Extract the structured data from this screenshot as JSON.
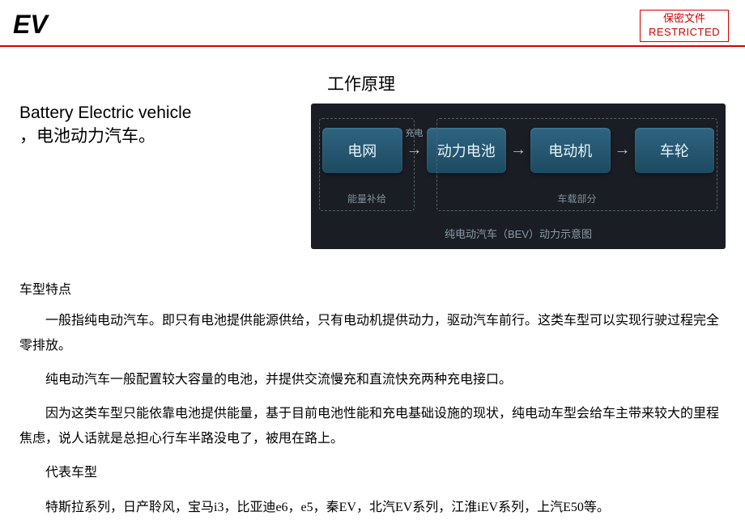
{
  "header": {
    "title": "EV",
    "restricted_cn": "保密文件",
    "restricted_en": "RESTRICTED",
    "restricted_color": "#d40000"
  },
  "intro": {
    "en": "Battery Electric vehicle",
    "cn": "，电池动力汽车。"
  },
  "diagram": {
    "title": "工作原理",
    "bg_color": "#1a1e24",
    "node_gradient_top": "#2e6480",
    "node_gradient_bottom": "#1d4a62",
    "caption": "纯电动汽车（BEV）动力示意图",
    "nodes": [
      "电网",
      "动力电池",
      "电动机",
      "车轮"
    ],
    "arrow_label_1": "充电",
    "group_left_label": "能量补给",
    "group_right_label": "车载部分"
  },
  "body": {
    "section_title": "车型特点",
    "p1": "一般指纯电动汽车。即只有电池提供能源供给，只有电动机提供动力，驱动汽车前行。这类车型可以实现行驶过程完全零排放。",
    "p2": "纯电动汽车一般配置较大容量的电池，并提供交流慢充和直流快充两种充电接口。",
    "p3": "因为这类车型只能依靠电池提供能量，基于目前电池性能和充电基础设施的现状，纯电动车型会给车主带来较大的里程焦虑，说人话就是总担心行车半路没电了，被甩在路上。",
    "rep_title": "代表车型",
    "rep_models": "特斯拉系列，日产聆风，宝马i3，比亚迪e6，e5，秦EV，北汽EV系列，江淮iEV系列，上汽E50等。"
  }
}
